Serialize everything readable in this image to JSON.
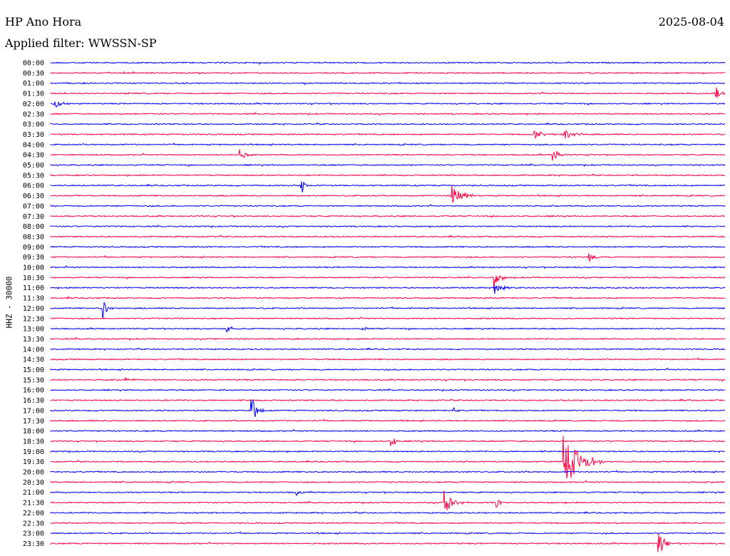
{
  "header": {
    "station": "HP Ano Hora",
    "date": "2025-08-04",
    "filter": "Applied filter: WWSSN-SP"
  },
  "channel_label": "HHZ - 30000",
  "colors": {
    "even": "#0000ff",
    "odd": "#ff0040",
    "text": "#000000"
  },
  "chart_data": {
    "type": "line",
    "kind": "helicorder",
    "rows": [
      "00:00",
      "00:30",
      "01:00",
      "01:30",
      "02:00",
      "02:30",
      "03:00",
      "03:30",
      "04:00",
      "04:30",
      "05:00",
      "05:30",
      "06:00",
      "06:30",
      "07:00",
      "07:30",
      "08:00",
      "08:30",
      "09:00",
      "09:30",
      "10:00",
      "10:30",
      "11:00",
      "11:30",
      "12:00",
      "12:30",
      "13:00",
      "13:30",
      "14:00",
      "14:30",
      "15:00",
      "15:30",
      "16:00",
      "16:30",
      "17:00",
      "17:30",
      "18:00",
      "18:30",
      "19:00",
      "19:30",
      "20:00",
      "20:30",
      "21:00",
      "21:30",
      "22:00",
      "22:30",
      "23:00",
      "23:30"
    ],
    "minutes_per_row": 30,
    "events": [
      {
        "row": 3,
        "minute": 29.5,
        "amp": 14,
        "dur": 0.6
      },
      {
        "row": 4,
        "minute": 0.1,
        "amp": 8,
        "dur": 0.9
      },
      {
        "row": 7,
        "minute": 21.5,
        "amp": 6,
        "dur": 1.4
      },
      {
        "row": 7,
        "minute": 22.8,
        "amp": 9,
        "dur": 1.0
      },
      {
        "row": 9,
        "minute": 8.4,
        "amp": 8,
        "dur": 0.7
      },
      {
        "row": 9,
        "minute": 22.3,
        "amp": 14,
        "dur": 0.6
      },
      {
        "row": 12,
        "minute": 11.1,
        "amp": 18,
        "dur": 0.4
      },
      {
        "row": 13,
        "minute": 17.8,
        "amp": 20,
        "dur": 1.1
      },
      {
        "row": 19,
        "minute": 23.9,
        "amp": 7,
        "dur": 0.7
      },
      {
        "row": 21,
        "minute": 19.7,
        "amp": 22,
        "dur": 0.6
      },
      {
        "row": 22,
        "minute": 19.7,
        "amp": 10,
        "dur": 0.9
      },
      {
        "row": 24,
        "minute": 2.3,
        "amp": 16,
        "dur": 0.5
      },
      {
        "row": 26,
        "minute": 7.8,
        "amp": 7,
        "dur": 0.6
      },
      {
        "row": 26,
        "minute": 13.8,
        "amp": 5,
        "dur": 0.5
      },
      {
        "row": 31,
        "minute": 3.3,
        "amp": 5,
        "dur": 0.6
      },
      {
        "row": 34,
        "minute": 8.9,
        "amp": 30,
        "dur": 0.6
      },
      {
        "row": 34,
        "minute": 17.9,
        "amp": 8,
        "dur": 0.4
      },
      {
        "row": 37,
        "minute": 15.1,
        "amp": 12,
        "dur": 0.5
      },
      {
        "row": 39,
        "minute": 22.8,
        "amp": 40,
        "dur": 1.8
      },
      {
        "row": 42,
        "minute": 10.9,
        "amp": 5,
        "dur": 0.4
      },
      {
        "row": 43,
        "minute": 17.5,
        "amp": 20,
        "dur": 0.9
      },
      {
        "row": 43,
        "minute": 19.8,
        "amp": 9,
        "dur": 0.5
      },
      {
        "row": 47,
        "minute": 27.0,
        "amp": 22,
        "dur": 0.7
      }
    ]
  }
}
